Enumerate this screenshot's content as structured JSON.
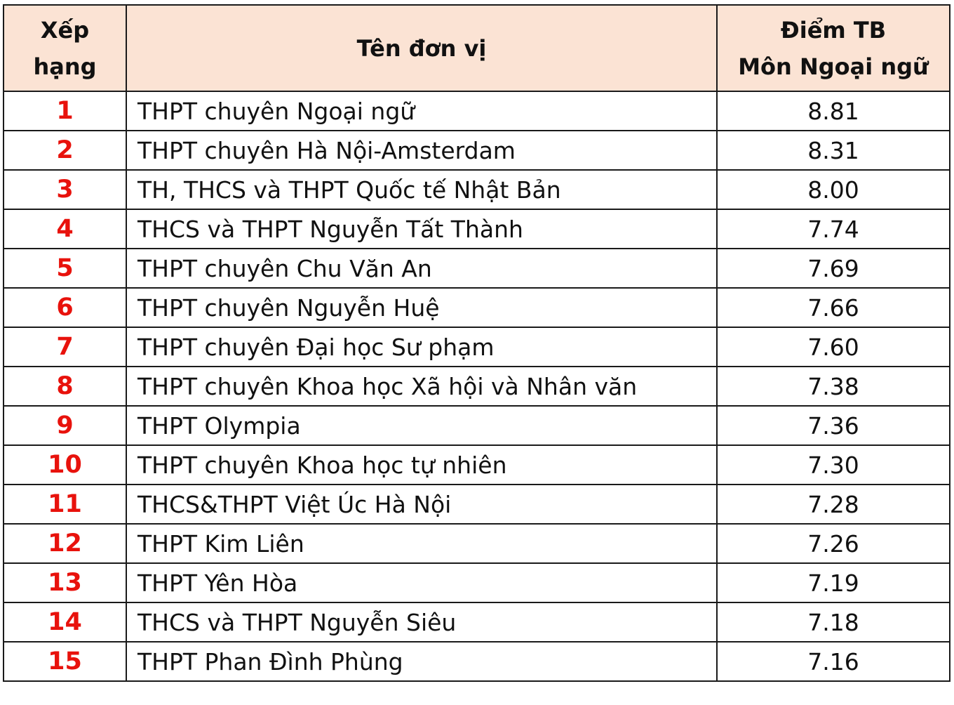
{
  "table": {
    "headers": {
      "rank_line1": "Xếp",
      "rank_line2": "hạng",
      "unit": "Tên đơn vị",
      "score_line1": "Điểm TB",
      "score_line2": "Môn Ngoại ngữ"
    },
    "rows": [
      {
        "rank": "1",
        "unit": "THPT chuyên Ngoại ngữ",
        "score": "8.81"
      },
      {
        "rank": "2",
        "unit": "THPT chuyên Hà Nội-Amsterdam",
        "score": "8.31"
      },
      {
        "rank": "3",
        "unit": "TH, THCS và THPT Quốc tế Nhật Bản",
        "score": "8.00"
      },
      {
        "rank": "4",
        "unit": "THCS và THPT Nguyễn Tất Thành",
        "score": "7.74"
      },
      {
        "rank": "5",
        "unit": "THPT chuyên Chu Văn An",
        "score": "7.69"
      },
      {
        "rank": "6",
        "unit": "THPT chuyên Nguyễn Huệ",
        "score": "7.66"
      },
      {
        "rank": "7",
        "unit": "THPT chuyên Đại học Sư phạm",
        "score": "7.60"
      },
      {
        "rank": "8",
        "unit": "THPT chuyên Khoa học Xã hội và Nhân văn",
        "score": "7.38"
      },
      {
        "rank": "9",
        "unit": "THPT Olympia",
        "score": "7.36"
      },
      {
        "rank": "10",
        "unit": "THPT chuyên Khoa học tự nhiên",
        "score": "7.30"
      },
      {
        "rank": "11",
        "unit": "THCS&THPT Việt Úc Hà Nội",
        "score": "7.28"
      },
      {
        "rank": "12",
        "unit": "THPT Kim Liên",
        "score": "7.26"
      },
      {
        "rank": "13",
        "unit": "THPT Yên Hòa",
        "score": "7.19"
      },
      {
        "rank": "14",
        "unit": "THCS và THPT Nguyễn Siêu",
        "score": "7.18"
      },
      {
        "rank": "15",
        "unit": "THPT Phan Đình Phùng",
        "score": "7.16"
      }
    ],
    "colors": {
      "header_bg": "#fbe3d4",
      "rank_text": "#e8120c",
      "border": "#1a1a1a"
    }
  }
}
